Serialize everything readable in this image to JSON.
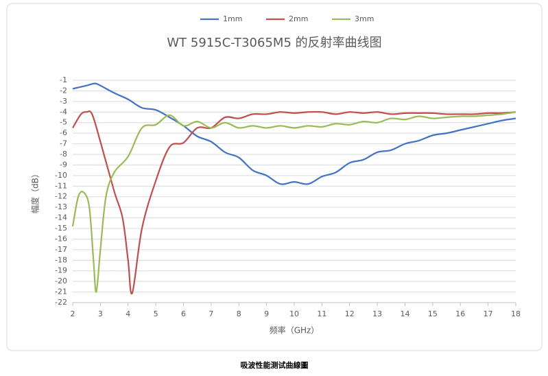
{
  "chart_data": {
    "type": "line",
    "title": "WT 5915C-T3065M5 的反射率曲线图",
    "xlabel": "频率（GHz）",
    "ylabel": "幅度（dB）",
    "caption": "吸波性能测试曲線圖",
    "xlim": [
      2,
      18
    ],
    "xticks": [
      2,
      3,
      4,
      5,
      6,
      7,
      8,
      9,
      10,
      11,
      12,
      13,
      14,
      15,
      16,
      17,
      18
    ],
    "ylim": [
      -22,
      -1
    ],
    "yticks": [
      -1,
      -2,
      -3,
      -4,
      -5,
      -6,
      -7,
      -8,
      -9,
      -10,
      -11,
      -12,
      -13,
      -14,
      -15,
      -16,
      -17,
      -18,
      -19,
      -20,
      -21,
      -22
    ],
    "grid": true,
    "legend": "top",
    "series": [
      {
        "name": "1mm",
        "color": "#4472c4",
        "x": [
          2,
          2.5,
          2.8,
          3,
          3.5,
          4,
          4.5,
          5,
          5.5,
          6,
          6.5,
          7,
          7.5,
          8,
          8.5,
          9,
          9.5,
          10,
          10.5,
          11,
          11.5,
          12,
          12.5,
          13,
          13.5,
          14,
          14.5,
          15,
          15.5,
          16,
          16.5,
          17,
          17.5,
          18
        ],
        "values": [
          -1.8,
          -1.5,
          -1.3,
          -1.5,
          -2.2,
          -2.8,
          -3.6,
          -3.8,
          -4.5,
          -5.3,
          -6.3,
          -6.8,
          -7.8,
          -8.3,
          -9.5,
          -10,
          -10.8,
          -10.6,
          -10.8,
          -10.1,
          -9.7,
          -8.8,
          -8.5,
          -7.8,
          -7.6,
          -7,
          -6.7,
          -6.2,
          -6,
          -5.7,
          -5.4,
          -5.1,
          -4.8,
          -4.6
        ]
      },
      {
        "name": "2mm",
        "color": "#c0504d",
        "x": [
          2,
          2.3,
          2.5,
          2.7,
          3,
          3.5,
          3.8,
          4,
          4.15,
          4.5,
          5,
          5.5,
          6,
          6.5,
          7,
          7.5,
          8,
          8.5,
          9,
          9.5,
          10,
          10.5,
          11,
          11.5,
          12,
          12.5,
          13,
          13.5,
          14,
          14.5,
          15,
          15.5,
          16,
          16.5,
          17,
          17.5,
          18
        ],
        "values": [
          -5.5,
          -4.2,
          -4,
          -4.2,
          -6.8,
          -11.5,
          -14,
          -18,
          -21.1,
          -15,
          -10.5,
          -7.3,
          -6.9,
          -5.5,
          -5.5,
          -4.5,
          -4.6,
          -4.2,
          -4.2,
          -4,
          -4.1,
          -4,
          -4,
          -4.2,
          -4,
          -4.1,
          -4,
          -4.2,
          -4.1,
          -4.1,
          -4.1,
          -4.2,
          -4.2,
          -4.2,
          -4.1,
          -4.1,
          -4
        ]
      },
      {
        "name": "3mm",
        "color": "#9bbb59",
        "x": [
          2,
          2.2,
          2.4,
          2.6,
          2.75,
          2.85,
          3,
          3.2,
          3.5,
          4,
          4.5,
          5,
          5.5,
          6,
          6.5,
          7,
          7.5,
          8,
          8.5,
          9,
          9.5,
          10,
          10.5,
          11,
          11.5,
          12,
          12.5,
          13,
          13.5,
          14,
          14.5,
          15,
          15.5,
          16,
          16.5,
          17,
          17.5,
          18
        ],
        "values": [
          -14.8,
          -12,
          -11.6,
          -13,
          -18,
          -21,
          -17,
          -12,
          -9.7,
          -8.2,
          -5.5,
          -5.2,
          -4.3,
          -5.3,
          -4.9,
          -5.5,
          -5,
          -5.5,
          -5.3,
          -5.5,
          -5.3,
          -5.5,
          -5.3,
          -5.4,
          -5.1,
          -5.2,
          -4.9,
          -5,
          -4.6,
          -4.7,
          -4.4,
          -4.6,
          -4.5,
          -4.4,
          -4.4,
          -4.3,
          -4.2,
          -4
        ]
      }
    ]
  }
}
